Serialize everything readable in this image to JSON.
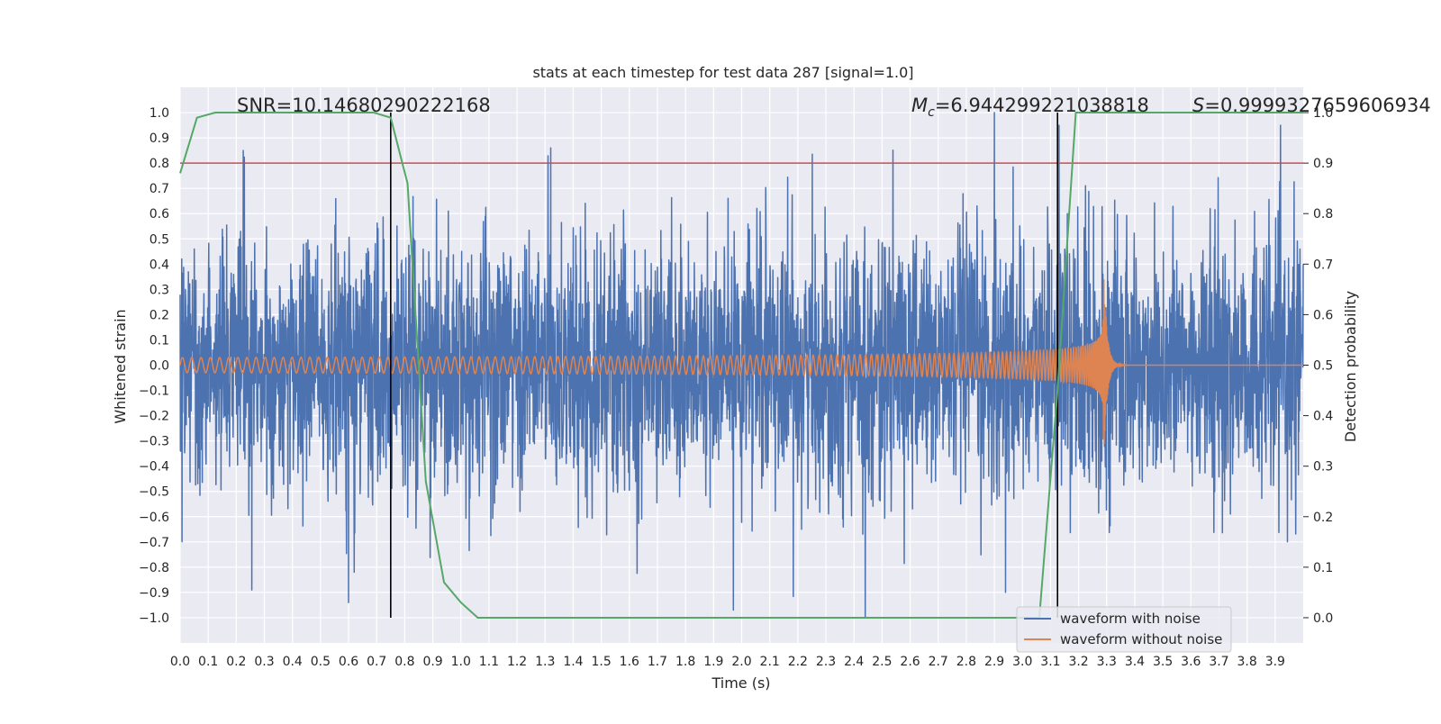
{
  "chart_data": {
    "type": "line",
    "title": "stats at each timestep for test data 287 [signal=1.0]",
    "xlabel": "Time (s)",
    "ylabel": "Whitened strain",
    "y2label": "Detection probability",
    "xlim": [
      0.0,
      4.0
    ],
    "ylim": [
      -1.1,
      1.1
    ],
    "y2lim": [
      -0.05,
      1.05
    ],
    "x_ticks": [
      "0.0",
      "0.1",
      "0.2",
      "0.3",
      "0.4",
      "0.5",
      "0.6",
      "0.7",
      "0.8",
      "0.9",
      "1.0",
      "1.1",
      "1.2",
      "1.3",
      "1.4",
      "1.5",
      "1.6",
      "1.7",
      "1.8",
      "1.9",
      "2.0",
      "2.1",
      "2.2",
      "2.3",
      "2.4",
      "2.5",
      "2.6",
      "2.7",
      "2.8",
      "2.9",
      "3.0",
      "3.1",
      "3.2",
      "3.3",
      "3.4",
      "3.5",
      "3.6",
      "3.7",
      "3.8",
      "3.9"
    ],
    "y_ticks": [
      "1.0",
      "0.9",
      "0.8",
      "0.7",
      "0.6",
      "0.5",
      "0.4",
      "0.3",
      "0.2",
      "0.1",
      "0.0",
      "−0.1",
      "−0.2",
      "−0.3",
      "−0.4",
      "−0.5",
      "−0.6",
      "−0.7",
      "−0.8",
      "−0.9",
      "−1.0"
    ],
    "y2_ticks": [
      "1.0",
      "0.9",
      "0.8",
      "0.7",
      "0.6",
      "0.5",
      "0.4",
      "0.3",
      "0.2",
      "0.1",
      "0.0"
    ],
    "annotations": {
      "snr": "SNR=10.14680290222168",
      "mc_symbol": "M",
      "mc_subscript": "c",
      "mc_value": "=6.944299221038818",
      "s_symbol": "S",
      "s_value": "=0.9999327659606934"
    },
    "threshold": {
      "axis": "y2",
      "value": 0.9,
      "color": "#c44e52"
    },
    "vlines": [
      {
        "x": 0.75,
        "y_range": [
          -1.0,
          1.0
        ],
        "color": "#000000"
      },
      {
        "x": 3.125,
        "y_range": [
          -1.0,
          1.0
        ],
        "color": "#000000"
      }
    ],
    "series": [
      {
        "name": "waveform with noise",
        "color": "#4c72b0",
        "axis": "y",
        "description": "noisy whitened strain, roughly within [-1.0, 1.0]",
        "noise_std": 0.25,
        "peaks": [
          {
            "x": 0.225,
            "y": 0.85
          },
          {
            "x": 0.255,
            "y": -0.89
          },
          {
            "x": 0.6,
            "y": -0.94
          },
          {
            "x": 0.62,
            "y": -0.82
          },
          {
            "x": 1.32,
            "y": 0.86
          },
          {
            "x": 1.97,
            "y": -0.97
          },
          {
            "x": 2.44,
            "y": -1.0
          },
          {
            "x": 2.9,
            "y": 1.0
          },
          {
            "x": 2.94,
            "y": -0.9
          },
          {
            "x": 3.13,
            "y": 0.95
          }
        ]
      },
      {
        "name": "waveform without noise",
        "color": "#dd8452",
        "axis": "y",
        "description": "chirp signal, amplitude ~0.03 rising to ~0.35 at merger near t=3.29s",
        "start_amplitude": 0.03,
        "peak_amplitude": 0.35,
        "merger_time": 3.29,
        "start_frequency_hz": 30
      },
      {
        "name": "detection probability",
        "color": "#55a868",
        "axis": "y2",
        "x": [
          0.0,
          0.06,
          0.125,
          0.19,
          0.25,
          0.31,
          0.375,
          0.44,
          0.5,
          0.56,
          0.625,
          0.69,
          0.75,
          0.81,
          0.875,
          0.94,
          1.0,
          1.06,
          1.125,
          1.5,
          2.0,
          2.5,
          3.0,
          3.06,
          3.125,
          3.19,
          3.25,
          3.5,
          4.0
        ],
        "y": [
          0.88,
          0.99,
          1.0,
          1.0,
          1.0,
          1.0,
          1.0,
          1.0,
          1.0,
          1.0,
          1.0,
          1.0,
          0.99,
          0.86,
          0.27,
          0.07,
          0.03,
          0.0,
          0.0,
          0.0,
          0.0,
          0.0,
          0.0,
          0.0,
          0.45,
          1.0,
          1.0,
          1.0,
          1.0
        ]
      }
    ],
    "legend": {
      "placement": "lower-right",
      "entries": [
        "waveform with noise",
        "waveform without noise"
      ]
    },
    "colors": {
      "background": "#eaeaf2",
      "grid": "#ffffff"
    }
  }
}
